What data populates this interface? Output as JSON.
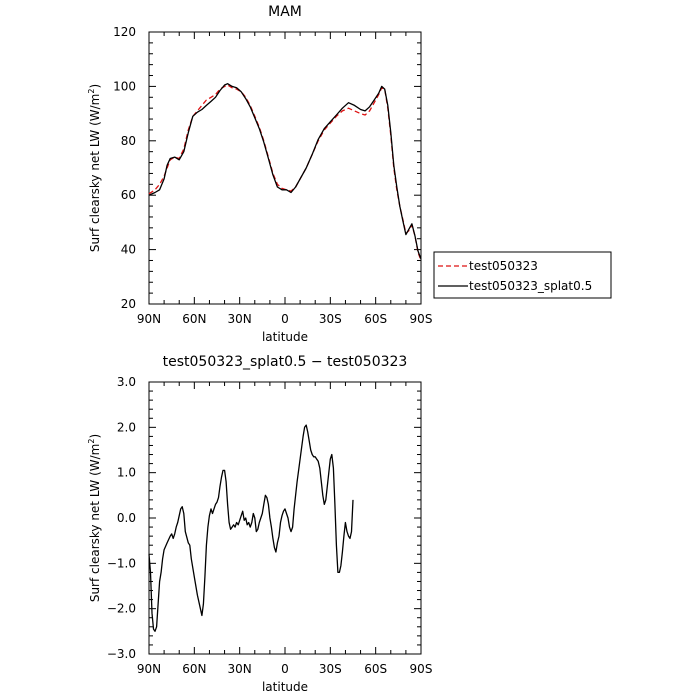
{
  "chart_data": [
    {
      "type": "line",
      "title": "MAM",
      "xlabel": "latitude",
      "ylabel": "Surf clearsky net LW (W/m²)",
      "ylabel_parts": {
        "main": "Surf clearsky net LW (W/m",
        "sup": "2",
        "end": ")"
      },
      "xlim": [
        90,
        -90
      ],
      "ylim": [
        20,
        120
      ],
      "xticks": [
        90,
        60,
        30,
        0,
        -30,
        -60,
        -90
      ],
      "xtick_labels": [
        "90N",
        "60N",
        "30N",
        "0",
        "30S",
        "60S",
        "90S"
      ],
      "yticks": [
        20,
        40,
        60,
        80,
        100,
        120
      ],
      "ytick_labels": [
        "20",
        "40",
        "60",
        "80",
        "100",
        "120"
      ],
      "legend_position": "right",
      "series": [
        {
          "name": "test050323",
          "color": "#dd1111",
          "dash": "dashed",
          "points": [
            [
              90,
              60.5
            ],
            [
              86,
              62
            ],
            [
              83,
              64
            ],
            [
              80,
              67
            ],
            [
              78,
              70
            ],
            [
              76,
              73
            ],
            [
              73,
              74
            ],
            [
              70,
              73.5
            ],
            [
              67,
              77
            ],
            [
              64,
              84
            ],
            [
              61,
              89
            ],
            [
              58,
              91
            ],
            [
              55,
              93
            ],
            [
              52,
              95
            ],
            [
              49,
              96
            ],
            [
              46,
              97
            ],
            [
              43,
              99
            ],
            [
              40,
              100
            ],
            [
              38,
              100.5
            ],
            [
              35,
              99.5
            ],
            [
              32,
              99
            ],
            [
              29,
              98
            ],
            [
              26,
              96
            ],
            [
              23,
              93
            ],
            [
              20,
              89
            ],
            [
              17,
              85
            ],
            [
              14,
              80
            ],
            [
              11,
              74
            ],
            [
              8,
              68
            ],
            [
              5,
              64
            ],
            [
              2,
              62.5
            ],
            [
              -1,
              62
            ],
            [
              -4,
              61.5
            ],
            [
              -7,
              63
            ],
            [
              -10,
              66
            ],
            [
              -14,
              70
            ],
            [
              -18,
              75
            ],
            [
              -22,
              80
            ],
            [
              -26,
              84
            ],
            [
              -30,
              86.5
            ],
            [
              -34,
              89
            ],
            [
              -38,
              91
            ],
            [
              -42,
              92
            ],
            [
              -46,
              91
            ],
            [
              -50,
              90
            ],
            [
              -53,
              89.5
            ],
            [
              -56,
              91
            ],
            [
              -59,
              94
            ],
            [
              -62,
              97
            ],
            [
              -64,
              99.5
            ],
            [
              -66,
              99
            ],
            [
              -68,
              92
            ],
            [
              -70,
              82
            ],
            [
              -72,
              70
            ],
            [
              -74,
              62
            ],
            [
              -76,
              56
            ],
            [
              -78,
              51
            ],
            [
              -80,
              46
            ],
            [
              -82,
              47
            ],
            [
              -84,
              49
            ],
            [
              -86,
              45
            ],
            [
              -88,
              39
            ],
            [
              -90,
              36
            ]
          ]
        },
        {
          "name": "test050323_splat0.5",
          "color": "#000000",
          "dash": "solid",
          "points": [
            [
              90,
              60
            ],
            [
              86,
              61
            ],
            [
              83,
              62
            ],
            [
              80,
              66
            ],
            [
              78,
              71
            ],
            [
              76,
              73.5
            ],
            [
              73,
              74
            ],
            [
              70,
              73
            ],
            [
              67,
              76
            ],
            [
              64,
              83
            ],
            [
              61,
              89
            ],
            [
              58,
              90.5
            ],
            [
              55,
              91.5
            ],
            [
              52,
              93
            ],
            [
              49,
              94.5
            ],
            [
              46,
              96
            ],
            [
              43,
              98.5
            ],
            [
              40,
              100.5
            ],
            [
              38,
              101
            ],
            [
              35,
              100
            ],
            [
              32,
              99.5
            ],
            [
              29,
              98
            ],
            [
              26,
              95.5
            ],
            [
              23,
              92.5
            ],
            [
              20,
              88.5
            ],
            [
              17,
              84.5
            ],
            [
              14,
              79.5
            ],
            [
              11,
              73.5
            ],
            [
              8,
              67.5
            ],
            [
              5,
              63
            ],
            [
              2,
              62
            ],
            [
              -1,
              62
            ],
            [
              -4,
              61
            ],
            [
              -7,
              63
            ],
            [
              -10,
              66
            ],
            [
              -14,
              70
            ],
            [
              -18,
              75
            ],
            [
              -22,
              80.5
            ],
            [
              -26,
              84.5
            ],
            [
              -30,
              87
            ],
            [
              -34,
              89.5
            ],
            [
              -38,
              92
            ],
            [
              -42,
              94
            ],
            [
              -46,
              93
            ],
            [
              -50,
              91.5
            ],
            [
              -53,
              91
            ],
            [
              -56,
              92.5
            ],
            [
              -59,
              95
            ],
            [
              -62,
              97.5
            ],
            [
              -64,
              100
            ],
            [
              -66,
              99
            ],
            [
              -68,
              93
            ],
            [
              -70,
              83
            ],
            [
              -72,
              71
            ],
            [
              -74,
              63
            ],
            [
              -76,
              56
            ],
            [
              -78,
              50.5
            ],
            [
              -80,
              45.5
            ],
            [
              -82,
              47.5
            ],
            [
              -84,
              49.5
            ],
            [
              -86,
              45
            ],
            [
              -88,
              39.5
            ],
            [
              -90,
              36.5
            ]
          ]
        }
      ]
    },
    {
      "type": "line",
      "title": "test050323_splat0.5 − test050323",
      "xlabel": "latitude",
      "ylabel": "Surf clearsky net LW (W/m²)",
      "ylabel_parts": {
        "main": "Surf clearsky net LW (W/m",
        "sup": "2",
        "end": ")"
      },
      "xlim": [
        90,
        -90
      ],
      "ylim": [
        -3.0,
        3.0
      ],
      "xticks": [
        90,
        60,
        30,
        0,
        -30,
        -60,
        -90
      ],
      "xtick_labels": [
        "90N",
        "60N",
        "30N",
        "0",
        "30S",
        "60S",
        "90S"
      ],
      "yticks": [
        -3,
        -2,
        -1,
        0,
        1,
        2,
        3
      ],
      "ytick_labels": [
        "−3.0",
        "−2.0",
        "−1.0",
        "0.0",
        "1.0",
        "2.0",
        "3.0"
      ],
      "series": [
        {
          "color": "#000000",
          "dash": "solid",
          "points": [
            [
              90,
              -0.8
            ],
            [
              89,
              -1.2
            ],
            [
              88,
              -2.1
            ],
            [
              87,
              -2.45
            ],
            [
              86,
              -2.5
            ],
            [
              85,
              -2.4
            ],
            [
              84,
              -1.9
            ],
            [
              83,
              -1.4
            ],
            [
              82,
              -1.2
            ],
            [
              81,
              -0.9
            ],
            [
              80,
              -0.7
            ],
            [
              78,
              -0.55
            ],
            [
              76,
              -0.4
            ],
            [
              75,
              -0.35
            ],
            [
              74,
              -0.45
            ],
            [
              73,
              -0.35
            ],
            [
              72,
              -0.2
            ],
            [
              71,
              -0.1
            ],
            [
              70,
              0.05
            ],
            [
              69,
              0.2
            ],
            [
              68,
              0.25
            ],
            [
              67,
              0.1
            ],
            [
              66,
              -0.3
            ],
            [
              64,
              -0.55
            ],
            [
              63,
              -0.6
            ],
            [
              62,
              -0.9
            ],
            [
              60,
              -1.3
            ],
            [
              58,
              -1.7
            ],
            [
              56,
              -2.0
            ],
            [
              55,
              -2.15
            ],
            [
              54,
              -1.9
            ],
            [
              53,
              -1.3
            ],
            [
              52,
              -0.6
            ],
            [
              51,
              -0.2
            ],
            [
              50,
              0.05
            ],
            [
              49,
              0.2
            ],
            [
              48,
              0.1
            ],
            [
              47,
              0.2
            ],
            [
              46,
              0.3
            ],
            [
              45,
              0.35
            ],
            [
              44,
              0.45
            ],
            [
              43,
              0.7
            ],
            [
              42,
              0.9
            ],
            [
              41,
              1.05
            ],
            [
              40,
              1.05
            ],
            [
              39,
              0.8
            ],
            [
              38,
              0.3
            ],
            [
              37,
              -0.1
            ],
            [
              36,
              -0.25
            ],
            [
              35,
              -0.2
            ],
            [
              34,
              -0.15
            ],
            [
              33,
              -0.2
            ],
            [
              32,
              -0.1
            ],
            [
              31,
              -0.15
            ],
            [
              30,
              -0.05
            ],
            [
              29,
              0.05
            ],
            [
              28,
              0.15
            ],
            [
              27,
              -0.05
            ],
            [
              26,
              0.0
            ],
            [
              25,
              -0.15
            ],
            [
              24,
              -0.1
            ],
            [
              23,
              -0.2
            ],
            [
              22,
              -0.1
            ],
            [
              21,
              0.1
            ],
            [
              20,
              0.0
            ],
            [
              19,
              -0.3
            ],
            [
              18,
              -0.25
            ],
            [
              17,
              -0.1
            ],
            [
              16,
              0.0
            ],
            [
              15,
              0.1
            ],
            [
              14,
              0.3
            ],
            [
              13,
              0.5
            ],
            [
              12,
              0.45
            ],
            [
              11,
              0.3
            ],
            [
              10,
              0.0
            ],
            [
              9,
              -0.2
            ],
            [
              8,
              -0.45
            ],
            [
              7,
              -0.65
            ],
            [
              6,
              -0.75
            ],
            [
              5,
              -0.55
            ],
            [
              4,
              -0.4
            ],
            [
              3,
              -0.1
            ],
            [
              2,
              0.05
            ],
            [
              1,
              0.15
            ],
            [
              0,
              0.2
            ],
            [
              -1,
              0.1
            ],
            [
              -2,
              0.0
            ],
            [
              -3,
              -0.2
            ],
            [
              -4,
              -0.3
            ],
            [
              -5,
              -0.2
            ],
            [
              -6,
              0.2
            ],
            [
              -7,
              0.5
            ],
            [
              -8,
              0.8
            ],
            [
              -9,
              1.05
            ],
            [
              -10,
              1.3
            ],
            [
              -11,
              1.55
            ],
            [
              -12,
              1.8
            ],
            [
              -13,
              2.0
            ],
            [
              -14,
              2.05
            ],
            [
              -15,
              1.9
            ],
            [
              -16,
              1.7
            ],
            [
              -17,
              1.5
            ],
            [
              -18,
              1.4
            ],
            [
              -19,
              1.35
            ],
            [
              -20,
              1.35
            ],
            [
              -21,
              1.3
            ],
            [
              -22,
              1.25
            ],
            [
              -23,
              1.1
            ],
            [
              -24,
              0.8
            ],
            [
              -25,
              0.5
            ],
            [
              -26,
              0.3
            ],
            [
              -27,
              0.4
            ],
            [
              -28,
              0.7
            ],
            [
              -29,
              1.0
            ],
            [
              -30,
              1.3
            ],
            [
              -31,
              1.4
            ],
            [
              -32,
              1.1
            ],
            [
              -33,
              0.3
            ],
            [
              -34,
              -0.6
            ],
            [
              -35,
              -1.2
            ],
            [
              -36,
              -1.2
            ],
            [
              -37,
              -1.05
            ],
            [
              -38,
              -0.75
            ],
            [
              -39,
              -0.4
            ],
            [
              -40,
              -0.1
            ],
            [
              -41,
              -0.3
            ],
            [
              -42,
              -0.4
            ],
            [
              -43,
              -0.45
            ],
            [
              -44,
              -0.3
            ],
            [
              -45,
              0.4
            ]
          ]
        }
      ]
    }
  ]
}
